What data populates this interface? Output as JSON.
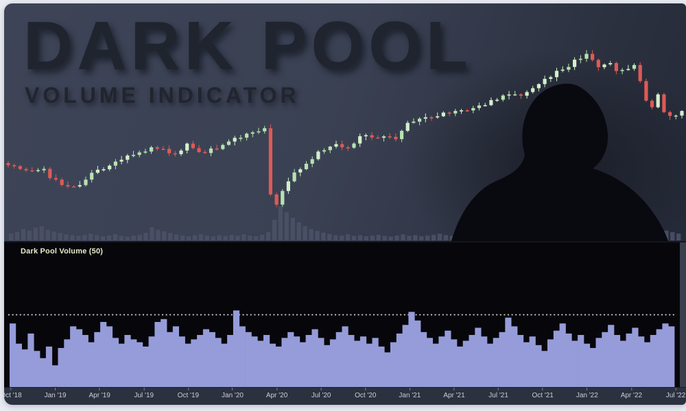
{
  "title": {
    "line1": "DARK POOL",
    "line2": "VOLUME INDICATOR"
  },
  "indicator": {
    "label": "Dark Pool Volume (50)"
  },
  "axis": {
    "labels": [
      "Oct '18",
      "Jan '19",
      "Apr '19",
      "Jul '19",
      "Oct '19",
      "Jan '20",
      "Apr '20",
      "Jul '20",
      "Oct '20",
      "Jan '21",
      "Apr '21",
      "Jul '21",
      "Oct '21",
      "Jan '22",
      "Apr '22",
      "Jul '22"
    ]
  },
  "colors": {
    "card_background": "#3a4153",
    "panel_black": "#07070b",
    "axis_bar": "#2c3140",
    "axis_text": "#c9cdd8",
    "title_text": "#20242f",
    "indicator_label": "#e8ecca",
    "frame_white": "#e9ebf2"
  },
  "chart_data": [
    {
      "type": "candlestick",
      "name": "index price (stylized weekly candles)",
      "x_labels": [
        "Oct '18",
        "Jan '19",
        "Apr '19",
        "Jul '19",
        "Oct '19",
        "Jan '20",
        "Apr '20",
        "Jul '20",
        "Oct '20",
        "Jan '21",
        "Apr '21",
        "Jul '21",
        "Oct '21",
        "Jan '22",
        "Apr '22",
        "Jul '22"
      ],
      "value_scale": "relative price 0-100",
      "candle_count": 114,
      "up_color": "#b6e2af",
      "up_color_bright": "#d3efcb",
      "down_color": "#dd5a56",
      "trend_keypoints": [
        [
          0,
          29
        ],
        [
          0.024,
          25
        ],
        [
          0.05,
          27
        ],
        [
          0.07,
          21
        ],
        [
          0.1,
          16
        ],
        [
          0.126,
          25
        ],
        [
          0.156,
          31
        ],
        [
          0.197,
          37
        ],
        [
          0.227,
          40
        ],
        [
          0.247,
          35
        ],
        [
          0.267,
          42
        ],
        [
          0.288,
          37
        ],
        [
          0.308,
          40
        ],
        [
          0.338,
          46
        ],
        [
          0.369,
          50
        ],
        [
          0.382,
          52
        ],
        [
          0.39,
          10
        ],
        [
          0.395,
          4
        ],
        [
          0.419,
          23
        ],
        [
          0.45,
          33
        ],
        [
          0.48,
          42
        ],
        [
          0.506,
          38
        ],
        [
          0.521,
          48
        ],
        [
          0.546,
          43
        ],
        [
          0.559,
          48
        ],
        [
          0.573,
          44
        ],
        [
          0.587,
          52
        ],
        [
          0.602,
          56
        ],
        [
          0.632,
          58
        ],
        [
          0.663,
          61
        ],
        [
          0.693,
          64
        ],
        [
          0.723,
          68
        ],
        [
          0.749,
          73
        ],
        [
          0.764,
          70
        ],
        [
          0.784,
          76
        ],
        [
          0.815,
          84
        ],
        [
          0.845,
          91
        ],
        [
          0.86,
          94
        ],
        [
          0.873,
          86
        ],
        [
          0.89,
          89
        ],
        [
          0.906,
          84
        ],
        [
          0.931,
          87
        ],
        [
          0.946,
          67
        ],
        [
          0.956,
          64
        ],
        [
          0.964,
          72
        ],
        [
          0.973,
          62
        ],
        [
          0.982,
          58
        ],
        [
          0.992,
          59
        ],
        [
          1,
          61
        ]
      ]
    },
    {
      "type": "bar",
      "name": "exchange volume (upper panel, faint)",
      "color": "#4b5268",
      "value_scale": "percent of max 0-100",
      "values": [
        18,
        22,
        30,
        26,
        34,
        38,
        28,
        24,
        20,
        16,
        14,
        12,
        15,
        18,
        14,
        11,
        13,
        16,
        12,
        10,
        13,
        15,
        20,
        35,
        28,
        24,
        20,
        16,
        13,
        11,
        14,
        17,
        13,
        11,
        14,
        12,
        15,
        13,
        16,
        13,
        11,
        15,
        22,
        55,
        90,
        75,
        60,
        48,
        38,
        30,
        25,
        21,
        17,
        14,
        13,
        16,
        12,
        14,
        11,
        13,
        15,
        12,
        10,
        13,
        16,
        12,
        14,
        11,
        13,
        15,
        18,
        14,
        12,
        15,
        12,
        14,
        17,
        13,
        11,
        14,
        12,
        15,
        18,
        14,
        12,
        16,
        13,
        15,
        12,
        14,
        17,
        20,
        16,
        13,
        15,
        18,
        14,
        12,
        15,
        22,
        28,
        35,
        45,
        40,
        32,
        38,
        30,
        26,
        22,
        18
      ]
    },
    {
      "type": "bar",
      "name": "Dark Pool Volume (50)",
      "color": "#959cd9",
      "threshold_pct": 50,
      "threshold_line_style": "dotted white",
      "value_scale": "percent of panel height 0-100",
      "x_labels": [
        "Oct '18",
        "Jan '19",
        "Apr '19",
        "Jul '19",
        "Oct '19",
        "Jan '20",
        "Apr '20",
        "Jul '20",
        "Oct '20",
        "Jan '21",
        "Apr '21",
        "Jul '21",
        "Oct '21",
        "Jan '22",
        "Apr '22",
        "Jul '22"
      ],
      "values": [
        44,
        30,
        26,
        37,
        25,
        20,
        28,
        15,
        27,
        33,
        42,
        40,
        36,
        31,
        38,
        45,
        42,
        34,
        30,
        36,
        33,
        31,
        28,
        35,
        45,
        47,
        38,
        42,
        35,
        30,
        33,
        36,
        40,
        38,
        34,
        30,
        36,
        53,
        42,
        38,
        35,
        32,
        36,
        30,
        28,
        34,
        38,
        35,
        31,
        36,
        40,
        34,
        29,
        33,
        38,
        42,
        36,
        32,
        35,
        30,
        34,
        28,
        24,
        31,
        37,
        43,
        52,
        46,
        38,
        34,
        30,
        35,
        39,
        33,
        28,
        32,
        36,
        41,
        35,
        30,
        34,
        38,
        48,
        42,
        36,
        31,
        35,
        29,
        25,
        33,
        39,
        44,
        37,
        32,
        36,
        30,
        27,
        34,
        38,
        43,
        36,
        32,
        37,
        41,
        35,
        31,
        36,
        40,
        44,
        42
      ]
    }
  ]
}
